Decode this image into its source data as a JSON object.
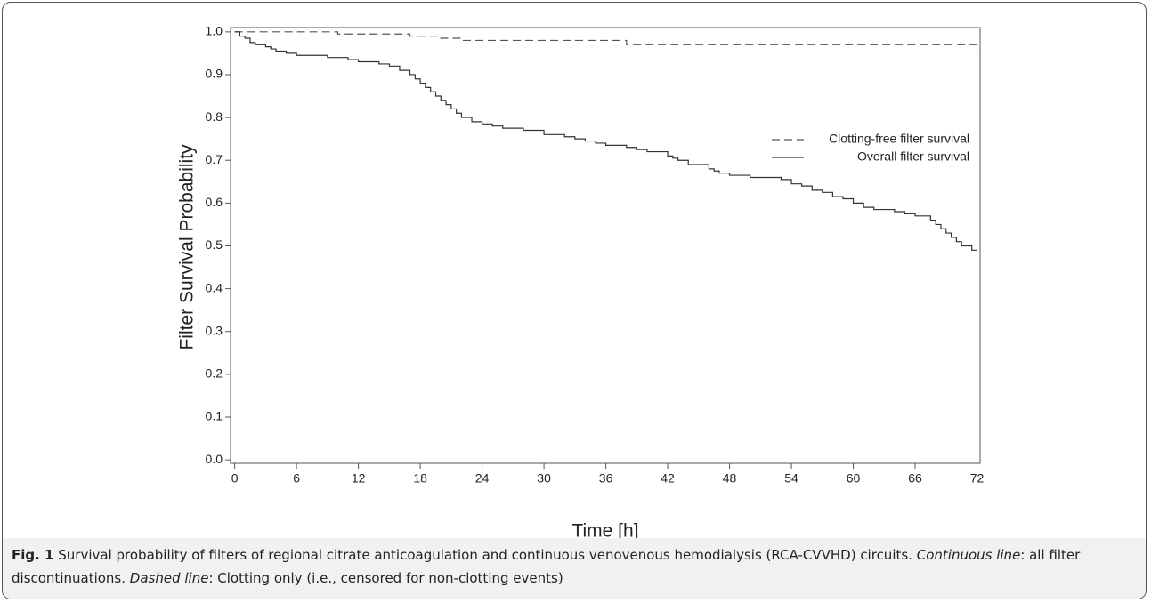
{
  "chart_data": {
    "type": "step",
    "xlabel": "Time [h]",
    "ylabel": "Filter Survival Probability",
    "xlim": [
      -0.4,
      72.3
    ],
    "ylim": [
      -0.008,
      1.01
    ],
    "xticks": [
      0,
      6,
      12,
      18,
      24,
      30,
      36,
      42,
      48,
      54,
      60,
      66,
      72
    ],
    "yticks": [
      {
        "value": 0,
        "label": "0.0"
      },
      0.1,
      0.2,
      0.3,
      0.4,
      0.5,
      0.6,
      0.7,
      0.8,
      0.9,
      {
        "value": 1,
        "label": "1.0"
      }
    ],
    "legend": "upper right",
    "series": [
      {
        "name": "Clotting-free filter survival",
        "color": "#555555",
        "dash": true,
        "x": [
          0,
          10,
          17,
          20,
          22,
          38,
          71.8,
          72
        ],
        "values": [
          1.0,
          0.995,
          0.99,
          0.985,
          0.98,
          0.97,
          0.97,
          0.955
        ]
      },
      {
        "name": "Overall filter survival",
        "color": "#333333",
        "dash": false,
        "x": [
          0,
          0.5,
          1,
          1.5,
          2,
          3,
          3.5,
          4,
          5,
          6,
          9,
          11,
          12,
          14,
          15,
          16,
          17,
          17.5,
          18,
          18.5,
          19,
          19.5,
          20,
          20.5,
          21,
          21.5,
          22,
          23,
          24,
          25,
          26,
          28,
          30,
          32,
          33,
          34,
          35,
          36,
          38,
          39,
          40,
          42,
          42.5,
          43,
          44,
          46,
          46.5,
          47,
          48,
          50,
          53,
          54,
          55,
          56,
          57,
          58,
          59,
          60,
          61,
          62,
          64,
          65,
          66,
          67.5,
          68,
          68.5,
          69,
          69.5,
          70,
          70.5,
          71.5,
          72
        ],
        "values": [
          1.0,
          0.99,
          0.985,
          0.975,
          0.97,
          0.965,
          0.96,
          0.955,
          0.95,
          0.945,
          0.94,
          0.935,
          0.93,
          0.925,
          0.92,
          0.91,
          0.9,
          0.89,
          0.88,
          0.87,
          0.86,
          0.85,
          0.84,
          0.83,
          0.82,
          0.81,
          0.8,
          0.79,
          0.785,
          0.78,
          0.775,
          0.77,
          0.76,
          0.755,
          0.75,
          0.745,
          0.74,
          0.735,
          0.73,
          0.725,
          0.72,
          0.71,
          0.705,
          0.7,
          0.69,
          0.68,
          0.675,
          0.67,
          0.665,
          0.66,
          0.655,
          0.645,
          0.64,
          0.63,
          0.625,
          0.615,
          0.61,
          0.6,
          0.59,
          0.585,
          0.58,
          0.575,
          0.57,
          0.56,
          0.55,
          0.54,
          0.53,
          0.52,
          0.51,
          0.5,
          0.49,
          0.49
        ]
      }
    ]
  },
  "caption": {
    "label": "Fig. 1",
    "text1": "Survival probability of filters of regional citrate anticoagulation and continuous venovenous hemodialysis (RCA-CVVHD) circuits.",
    "italic1": "Continuous line",
    "text2": ": all filter discontinuations.",
    "italic2": "Dashed line",
    "text3": ": Clotting only (i.e., censored for non-clotting events)"
  }
}
